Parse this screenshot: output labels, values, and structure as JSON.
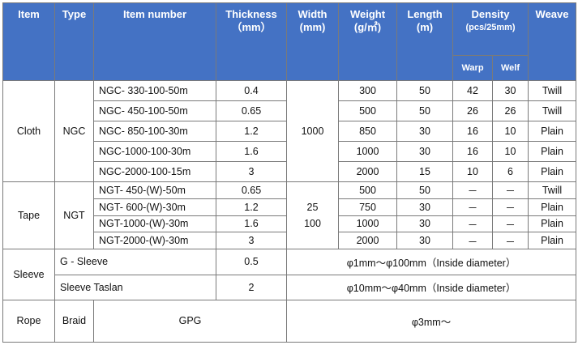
{
  "header": {
    "item": "Item",
    "type": "Type",
    "item_number": "Item number",
    "thickness": "Thickness",
    "thickness_unit": "（mm）",
    "width": "Width",
    "width_unit": "(mm)",
    "weight": "Weight",
    "weight_unit": "(g/㎡)",
    "length": "Length",
    "length_unit": "(m)",
    "density": "Density",
    "density_unit": "(pcs/25mm)",
    "warp": "Warp",
    "welf": "Welf",
    "weave": "Weave"
  },
  "cloth": {
    "item": "Cloth",
    "type": "NGC",
    "width": "1000",
    "rows": [
      {
        "number": "NGC- 330-100-50m",
        "thickness": "0.4",
        "weight": "300",
        "length": "50",
        "warp": "42",
        "welf": "30",
        "weave": "Twill"
      },
      {
        "number": "NGC- 450-100-50m",
        "thickness": "0.65",
        "weight": "500",
        "length": "50",
        "warp": "26",
        "welf": "26",
        "weave": "Twill"
      },
      {
        "number": "NGC- 850-100-30m",
        "thickness": "1.2",
        "weight": "850",
        "length": "30",
        "warp": "16",
        "welf": "10",
        "weave": "Plain"
      },
      {
        "number": "NGC-1000-100-30m",
        "thickness": "1.6",
        "weight": "1000",
        "length": "30",
        "warp": "16",
        "welf": "10",
        "weave": "Plain"
      },
      {
        "number": "NGC-2000-100-15m",
        "thickness": "3",
        "weight": "2000",
        "length": "15",
        "warp": "10",
        "welf": "6",
        "weave": "Plain"
      }
    ]
  },
  "tape": {
    "item": "Tape",
    "type": "NGT",
    "rows": [
      {
        "number": "NGT- 450-(W)-50m",
        "thickness": "0.65",
        "width": "",
        "weight": "500",
        "length": "50",
        "warp": "－",
        "welf": "－",
        "weave": "Twill"
      },
      {
        "number": "NGT- 600-(W)-30m",
        "thickness": "1.2",
        "width": "25",
        "weight": "750",
        "length": "30",
        "warp": "－",
        "welf": "－",
        "weave": "Plain"
      },
      {
        "number": "NGT-1000-(W)-30m",
        "thickness": "1.6",
        "width": "100",
        "weight": "1000",
        "length": "30",
        "warp": "－",
        "welf": "－",
        "weave": "Plain"
      },
      {
        "number": "NGT-2000-(W)-30m",
        "thickness": "3",
        "width": "",
        "weight": "2000",
        "length": "30",
        "warp": "－",
        "welf": "－",
        "weave": "Plain"
      }
    ]
  },
  "sleeve": {
    "item": "Sleeve",
    "rows": [
      {
        "name": "G - Sleeve",
        "thickness": "0.5",
        "size": "φ1mm～φ100mm（Inside diameter）"
      },
      {
        "name": "Sleeve Taslan",
        "thickness": "2",
        "size": "φ10mm～φ40mm（Inside diameter）"
      }
    ]
  },
  "rope": {
    "item": "Rope",
    "type": "Braid",
    "number": "GPG",
    "size": "φ3mm～"
  }
}
